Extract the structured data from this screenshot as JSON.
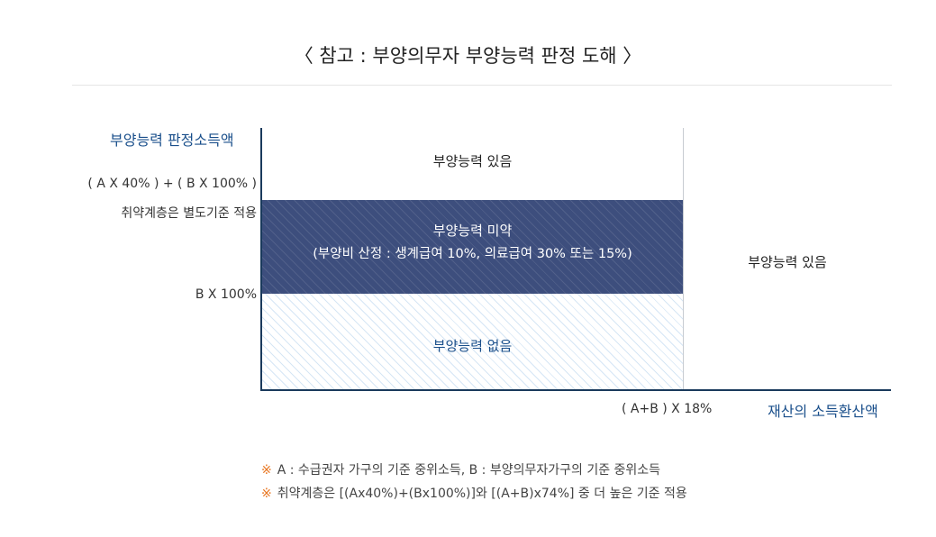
{
  "title": "〈 참고 : 부양의무자 부양능력 판정 도해 〉",
  "y_axis": {
    "title": "부양능력 판정소득액",
    "formula_line1": "( A X 40% ) + ( B X 100% )",
    "formula_line2": "취약계층은 별도기준 적용",
    "threshold_b": "B X 100%"
  },
  "x_axis": {
    "title": "재산의 소득환산액",
    "threshold": "( A+B ) X 18%"
  },
  "zones": {
    "top": "부양능력 있음",
    "middle_title": "부양능력 미약",
    "middle_detail": "(부양비 산정 : 생계급여 10%, 의료급여 30% 또는 15%)",
    "low": "부양능력 없음",
    "right": "부양능력 있음"
  },
  "notes": [
    {
      "mark": "※",
      "text": "A : 수급권자 가구의 기준 중위소득, B : 부양의무자가구의 기준 중위소득"
    },
    {
      "mark": "※",
      "text": "취약계층은 [(Ax40%)+(Bx100%)]와 [(A+B)x74%] 중 더 높은 기준 적용"
    }
  ],
  "colors": {
    "axis_title": "#1a4f8b",
    "band_dark": "#3d4e7d",
    "band_light_hatch": "#d6e6f5",
    "note_mark": "#e87722"
  }
}
